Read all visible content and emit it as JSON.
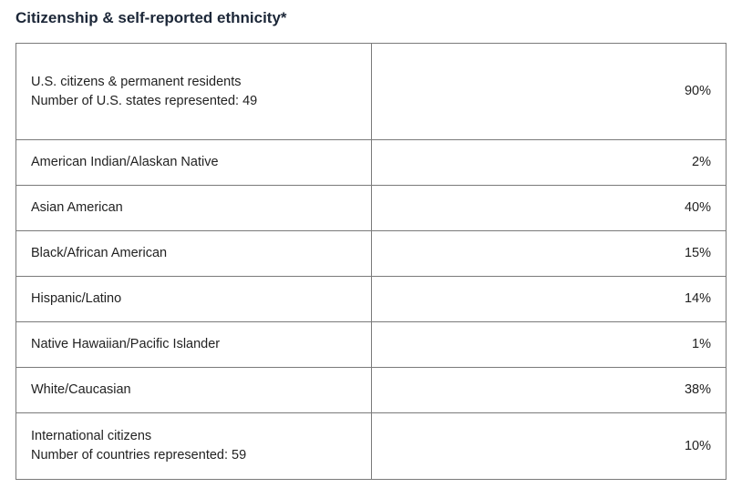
{
  "title": "Citizenship & self-reported ethnicity*",
  "rows": [
    {
      "lines": [
        "U.S. citizens & permanent residents",
        "Number of U.S. states represented: 49"
      ],
      "value": "90%"
    },
    {
      "lines": [
        "American Indian/Alaskan Native"
      ],
      "value": "2%"
    },
    {
      "lines": [
        "Asian American"
      ],
      "value": "40%"
    },
    {
      "lines": [
        "Black/African American"
      ],
      "value": "15%"
    },
    {
      "lines": [
        "Hispanic/Latino"
      ],
      "value": "14%"
    },
    {
      "lines": [
        "Native Hawaiian/Pacific Islander"
      ],
      "value": "1%"
    },
    {
      "lines": [
        "White/Caucasian"
      ],
      "value": "38%"
    },
    {
      "lines": [
        "International citizens",
        "Number of countries represented: 59"
      ],
      "value": "10%"
    }
  ]
}
